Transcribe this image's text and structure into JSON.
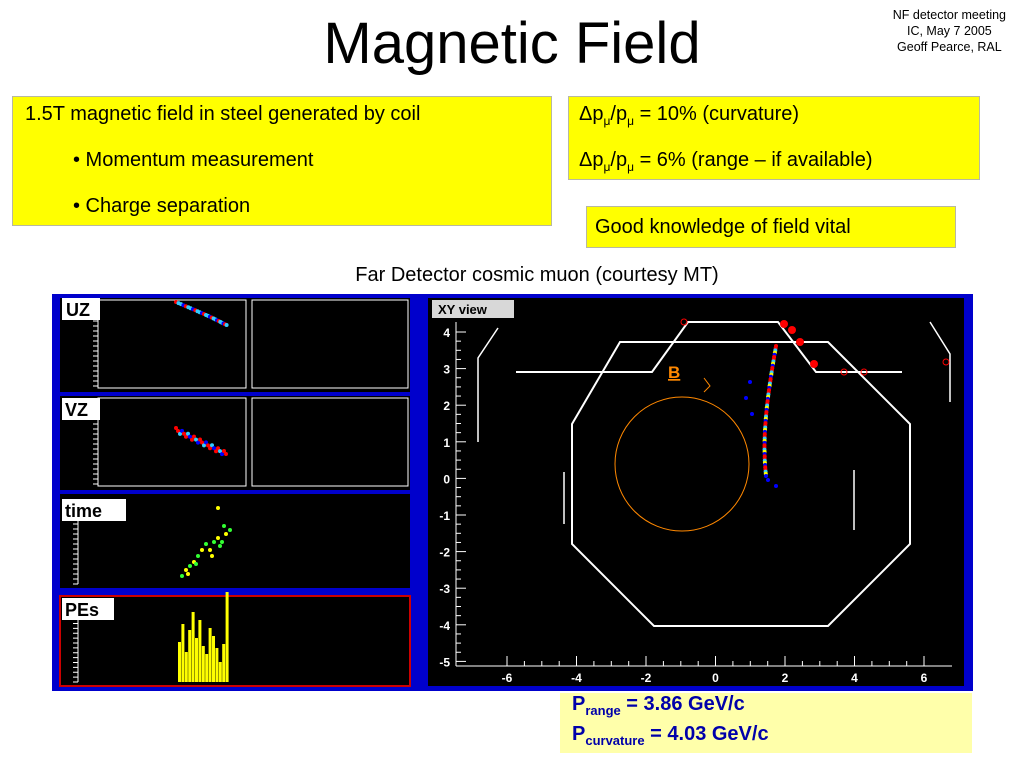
{
  "slide": {
    "title": "Magnetic Field",
    "meeting": [
      "NF detector meeting",
      "IC, May 7 2005",
      "Geoff Pearce, RAL"
    ],
    "field_box": {
      "text": "1.5T magnetic field in steel generated by coil",
      "bullets": [
        "• Momentum measurement",
        "• Charge separation"
      ]
    },
    "resolution_box": {
      "line1": {
        "prefix": "Δp",
        "sub1": "μ",
        "mid": "/p",
        "sub2": "μ",
        "suffix": " = 10% (curvature)"
      },
      "line2": {
        "prefix": "Δp",
        "sub1": "μ",
        "mid": "/p",
        "sub2": "μ",
        "suffix": " = 6% (range – if available)"
      }
    },
    "knowledge_box": "Good knowledge of field vital",
    "caption": "Far Detector cosmic muon (courtesy MT)",
    "momentum_box": {
      "range": {
        "p": "P",
        "sub": "range",
        "value": " = 3.86 GeV/c"
      },
      "curvature": {
        "p": "P",
        "sub": "curvature",
        "value": " = 4.03 GeV/c"
      }
    }
  },
  "event_display": {
    "panels": [
      "UZ",
      "VZ",
      "time",
      "PEs"
    ],
    "xy_view": {
      "label": "XY view",
      "b_label": "B",
      "x_ticks": [
        "-6",
        "-4",
        "-2",
        "0",
        "2",
        "4",
        "6"
      ],
      "y_ticks": [
        "4",
        "3",
        "2",
        "1",
        "0",
        "-1",
        "-2",
        "-3",
        "-4",
        "-5"
      ]
    },
    "colors": {
      "background": "#000000",
      "frame": "#0000cc",
      "hits_red": "#ff0000",
      "hits_cyan": "#33ccff",
      "hits_yellow": "#ffff00",
      "hits_blue": "#0000ff",
      "coil_circle": "#ff8800",
      "b_label": "#ff8800",
      "pe_bars": "#ffff00"
    }
  }
}
